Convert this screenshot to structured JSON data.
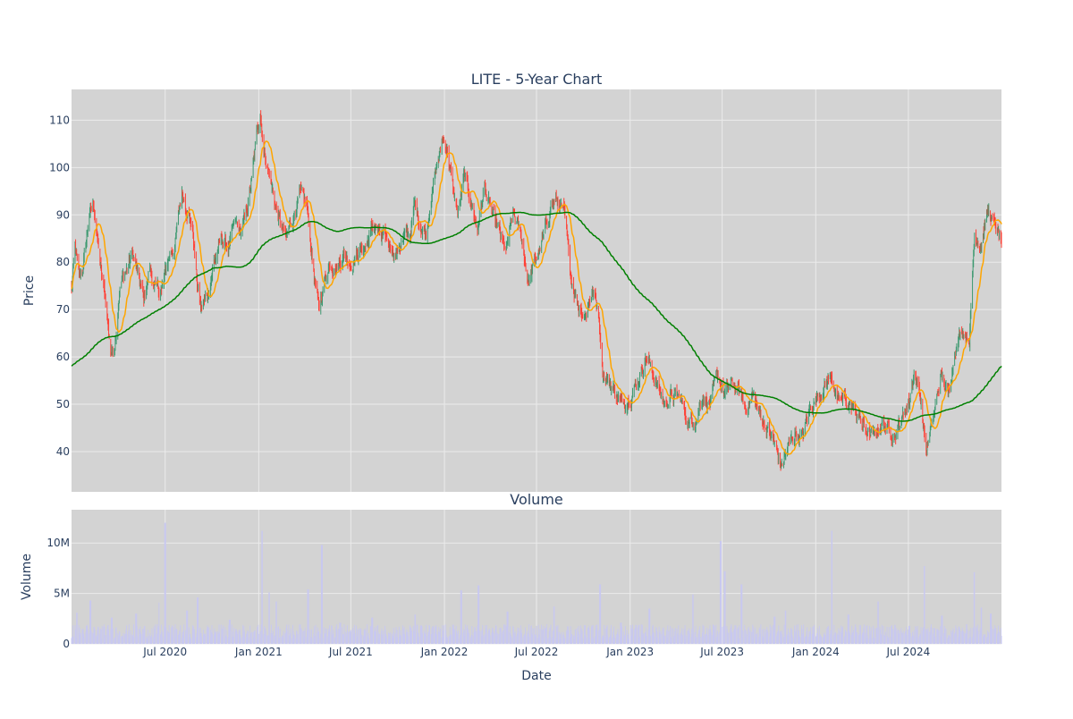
{
  "title": "LITE - 5-Year Chart",
  "colors": {
    "plot_bg": "#d3d3d3",
    "grid": "#ebebeb",
    "up": "#3d9970",
    "down": "#ff4136",
    "ma_short": "#ffa500",
    "ma_long": "#008000",
    "volume": "#c8c8f0",
    "text": "#2a3f5f"
  },
  "chart_data": [
    {
      "type": "candlestick",
      "title": "LITE - 5-Year Chart",
      "xlabel": "",
      "ylabel": "Price",
      "xlim": [
        "2019-12-30",
        "2024-12-31"
      ],
      "ylim": [
        31.5,
        116.5
      ],
      "x_ticks": [],
      "y_ticks": [
        40,
        50,
        60,
        70,
        80,
        90,
        100,
        110
      ],
      "grid": true,
      "legend": "none",
      "price_path": [
        [
          "2019-12-30",
          74
        ],
        [
          "2020-01-06",
          83
        ],
        [
          "2020-01-13",
          77
        ],
        [
          "2020-01-22",
          79
        ],
        [
          "2020-02-03",
          90
        ],
        [
          "2020-02-12",
          92
        ],
        [
          "2020-02-20",
          84
        ],
        [
          "2020-02-28",
          76
        ],
        [
          "2020-03-06",
          72
        ],
        [
          "2020-03-16",
          61
        ],
        [
          "2020-03-23",
          62
        ],
        [
          "2020-04-03",
          75
        ],
        [
          "2020-04-14",
          78
        ],
        [
          "2020-04-28",
          82
        ],
        [
          "2020-05-08",
          77
        ],
        [
          "2020-05-20",
          72
        ],
        [
          "2020-06-01",
          79
        ],
        [
          "2020-06-12",
          74
        ],
        [
          "2020-06-24",
          74
        ],
        [
          "2020-07-06",
          80
        ],
        [
          "2020-07-20",
          84
        ],
        [
          "2020-08-03",
          95
        ],
        [
          "2020-08-12",
          92
        ],
        [
          "2020-08-24",
          87
        ],
        [
          "2020-09-02",
          75
        ],
        [
          "2020-09-10",
          70
        ],
        [
          "2020-09-22",
          73
        ],
        [
          "2020-10-05",
          80
        ],
        [
          "2020-10-20",
          85
        ],
        [
          "2020-11-02",
          83
        ],
        [
          "2020-11-16",
          88
        ],
        [
          "2020-11-26",
          86
        ],
        [
          "2020-12-07",
          90
        ],
        [
          "2020-12-18",
          97
        ],
        [
          "2020-12-29",
          108
        ],
        [
          "2021-01-04",
          112
        ],
        [
          "2021-01-11",
          104
        ],
        [
          "2021-01-21",
          99
        ],
        [
          "2021-02-01",
          93
        ],
        [
          "2021-02-12",
          88
        ],
        [
          "2021-02-24",
          85
        ],
        [
          "2021-03-08",
          89
        ],
        [
          "2021-03-22",
          94
        ],
        [
          "2021-04-05",
          92
        ],
        [
          "2021-04-16",
          81
        ],
        [
          "2021-04-29",
          70
        ],
        [
          "2021-05-10",
          76
        ],
        [
          "2021-05-21",
          80
        ],
        [
          "2021-06-04",
          79
        ],
        [
          "2021-06-18",
          82
        ],
        [
          "2021-07-02",
          80
        ],
        [
          "2021-07-16",
          82
        ],
        [
          "2021-08-02",
          84
        ],
        [
          "2021-08-16",
          88
        ],
        [
          "2021-08-30",
          85
        ],
        [
          "2021-09-13",
          84
        ],
        [
          "2021-09-27",
          82
        ],
        [
          "2021-10-12",
          85
        ],
        [
          "2021-10-26",
          86
        ],
        [
          "2021-11-03",
          92
        ],
        [
          "2021-11-15",
          88
        ],
        [
          "2021-11-26",
          86
        ],
        [
          "2021-12-07",
          95
        ],
        [
          "2021-12-17",
          100
        ],
        [
          "2021-12-29",
          106
        ],
        [
          "2022-01-07",
          104
        ],
        [
          "2022-01-18",
          95
        ],
        [
          "2022-01-28",
          90
        ],
        [
          "2022-02-09",
          98
        ],
        [
          "2022-02-22",
          93
        ],
        [
          "2022-03-07",
          87
        ],
        [
          "2022-03-21",
          96
        ],
        [
          "2022-04-04",
          90
        ],
        [
          "2022-04-19",
          86
        ],
        [
          "2022-05-02",
          82
        ],
        [
          "2022-05-16",
          90
        ],
        [
          "2022-05-31",
          86
        ],
        [
          "2022-06-15",
          76
        ],
        [
          "2022-07-01",
          81
        ],
        [
          "2022-07-15",
          85
        ],
        [
          "2022-07-29",
          92
        ],
        [
          "2022-08-10",
          93
        ],
        [
          "2022-08-24",
          90
        ],
        [
          "2022-09-07",
          77
        ],
        [
          "2022-09-21",
          71
        ],
        [
          "2022-10-05",
          69
        ],
        [
          "2022-10-18",
          74
        ],
        [
          "2022-10-31",
          70
        ],
        [
          "2022-11-08",
          57
        ],
        [
          "2022-11-18",
          55
        ],
        [
          "2022-12-02",
          53
        ],
        [
          "2022-12-15",
          50
        ],
        [
          "2023-01-03",
          52
        ],
        [
          "2023-01-17",
          55
        ],
        [
          "2023-01-31",
          60
        ],
        [
          "2023-02-10",
          58
        ],
        [
          "2023-02-24",
          54
        ],
        [
          "2023-03-10",
          50
        ],
        [
          "2023-03-24",
          52
        ],
        [
          "2023-04-10",
          51
        ],
        [
          "2023-04-26",
          46
        ],
        [
          "2023-05-10",
          47
        ],
        [
          "2023-05-24",
          52
        ],
        [
          "2023-06-08",
          50
        ],
        [
          "2023-06-22",
          56
        ],
        [
          "2023-07-06",
          52
        ],
        [
          "2023-07-20",
          54
        ],
        [
          "2023-08-02",
          53
        ],
        [
          "2023-08-16",
          49
        ],
        [
          "2023-08-30",
          52
        ],
        [
          "2023-09-13",
          48
        ],
        [
          "2023-09-27",
          45
        ],
        [
          "2023-10-11",
          42
        ],
        [
          "2023-10-25",
          37
        ],
        [
          "2023-11-08",
          41
        ],
        [
          "2023-11-22",
          44
        ],
        [
          "2023-12-06",
          43
        ],
        [
          "2023-12-20",
          49
        ],
        [
          "2024-01-05",
          52
        ],
        [
          "2024-01-19",
          54
        ],
        [
          "2024-02-02",
          56
        ],
        [
          "2024-02-14",
          50
        ],
        [
          "2024-02-28",
          51
        ],
        [
          "2024-03-13",
          49
        ],
        [
          "2024-03-27",
          47
        ],
        [
          "2024-04-10",
          44
        ],
        [
          "2024-04-24",
          43
        ],
        [
          "2024-05-08",
          46
        ],
        [
          "2024-05-22",
          45
        ],
        [
          "2024-06-05",
          44
        ],
        [
          "2024-06-19",
          47
        ],
        [
          "2024-07-03",
          51
        ],
        [
          "2024-07-12",
          57
        ],
        [
          "2024-07-24",
          52
        ],
        [
          "2024-08-05",
          40
        ],
        [
          "2024-08-19",
          47
        ],
        [
          "2024-09-03",
          56
        ],
        [
          "2024-09-17",
          52
        ],
        [
          "2024-10-01",
          62
        ],
        [
          "2024-10-15",
          66
        ],
        [
          "2024-10-29",
          64
        ],
        [
          "2024-11-08",
          86
        ],
        [
          "2024-11-20",
          84
        ],
        [
          "2024-12-04",
          91
        ],
        [
          "2024-12-16",
          88
        ],
        [
          "2024-12-31",
          84
        ]
      ]
    },
    {
      "type": "bar",
      "title": "Volume",
      "xlabel": "Date",
      "ylabel": "Volume",
      "xlim": [
        "2019-12-30",
        "2024-12-31"
      ],
      "ylim": [
        0,
        13300000
      ],
      "x_ticks": [
        {
          "date": "2020-07-01",
          "label": "Jul 2020"
        },
        {
          "date": "2021-01-01",
          "label": "Jan 2021"
        },
        {
          "date": "2021-07-01",
          "label": "Jul 2021"
        },
        {
          "date": "2022-01-01",
          "label": "Jan 2022"
        },
        {
          "date": "2022-07-01",
          "label": "Jul 2022"
        },
        {
          "date": "2023-01-01",
          "label": "Jan 2023"
        },
        {
          "date": "2023-07-01",
          "label": "Jul 2023"
        },
        {
          "date": "2024-01-01",
          "label": "Jan 2024"
        },
        {
          "date": "2024-07-01",
          "label": "Jul 2024"
        }
      ],
      "y_ticks": [
        {
          "value": 0,
          "label": "0"
        },
        {
          "value": 5000000,
          "label": "5M"
        },
        {
          "value": 10000000,
          "label": "10M"
        }
      ],
      "grid": true,
      "baseline_volume": 1300000,
      "volume_spikes": [
        [
          "2020-01-10",
          3100000
        ],
        [
          "2020-02-05",
          4300000
        ],
        [
          "2020-03-18",
          2600000
        ],
        [
          "2020-05-05",
          3000000
        ],
        [
          "2020-06-20",
          4100000
        ],
        [
          "2020-07-01",
          12000000
        ],
        [
          "2020-08-13",
          3300000
        ],
        [
          "2020-09-03",
          4600000
        ],
        [
          "2020-11-05",
          2400000
        ],
        [
          "2021-01-08",
          11200000
        ],
        [
          "2021-01-22",
          5100000
        ],
        [
          "2021-02-05",
          4200000
        ],
        [
          "2021-04-08",
          5400000
        ],
        [
          "2021-05-05",
          9800000
        ],
        [
          "2021-06-10",
          2100000
        ],
        [
          "2021-08-12",
          2600000
        ],
        [
          "2021-11-05",
          2900000
        ],
        [
          "2022-02-03",
          5300000
        ],
        [
          "2022-03-09",
          5800000
        ],
        [
          "2022-05-05",
          3200000
        ],
        [
          "2022-08-05",
          3700000
        ],
        [
          "2022-11-03",
          5900000
        ],
        [
          "2022-12-14",
          2100000
        ],
        [
          "2023-02-08",
          3500000
        ],
        [
          "2023-05-05",
          4900000
        ],
        [
          "2023-06-28",
          10200000
        ],
        [
          "2023-07-06",
          7200000
        ],
        [
          "2023-08-08",
          5900000
        ],
        [
          "2023-10-12",
          2700000
        ],
        [
          "2023-11-03",
          3300000
        ],
        [
          "2024-02-02",
          11200000
        ],
        [
          "2024-03-05",
          2900000
        ],
        [
          "2024-05-03",
          4200000
        ],
        [
          "2024-08-02",
          7700000
        ],
        [
          "2024-09-05",
          2800000
        ],
        [
          "2024-11-08",
          7100000
        ],
        [
          "2024-11-22",
          3600000
        ],
        [
          "2024-12-10",
          3000000
        ]
      ]
    }
  ]
}
